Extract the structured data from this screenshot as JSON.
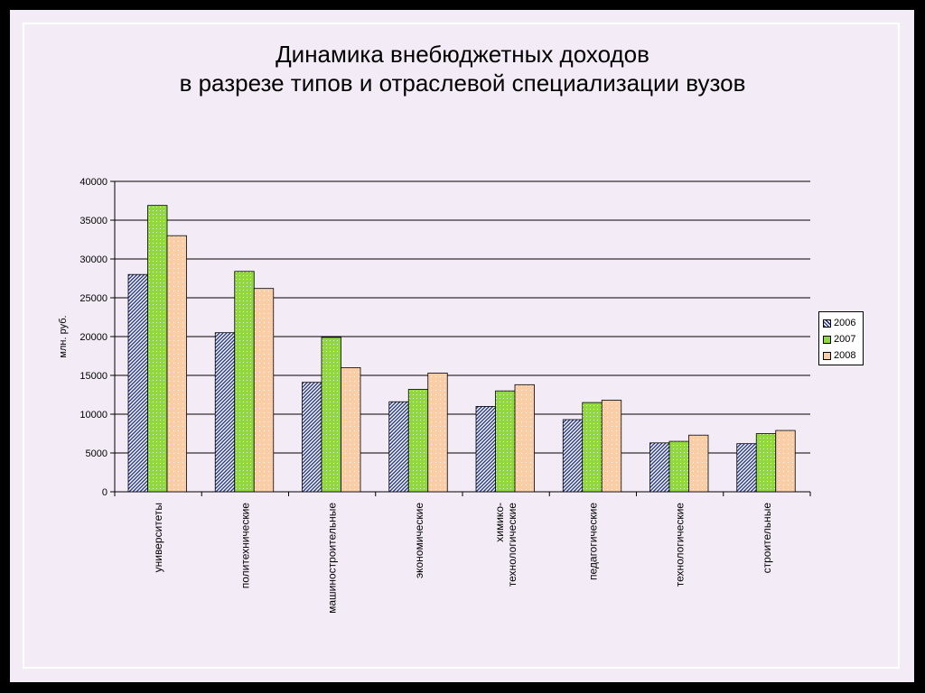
{
  "title": {
    "line1": "Динамика внебюджетных доходов",
    "line2": "в разрезе типов и отраслевой специализации вузов"
  },
  "chart_data": {
    "type": "bar",
    "ylabel": "млн. руб.",
    "ylim": [
      0,
      40000
    ],
    "yticks": [
      0,
      5000,
      10000,
      15000,
      20000,
      25000,
      30000,
      35000,
      40000
    ],
    "grid": true,
    "legend_position": "right",
    "categories": [
      [
        "университеты"
      ],
      [
        "политехнические"
      ],
      [
        "машиностроительные"
      ],
      [
        "экономические"
      ],
      [
        "химико-",
        "технологические"
      ],
      [
        "педагогические"
      ],
      [
        "технологические"
      ],
      [
        "строительные"
      ]
    ],
    "series": [
      {
        "name": "2006",
        "color": "#2d3b8f",
        "values": [
          28000,
          20500,
          14100,
          11600,
          11000,
          9300,
          6300,
          6200
        ]
      },
      {
        "name": "2007",
        "color": "#8fd93f",
        "values": [
          36900,
          28400,
          19900,
          13200,
          13000,
          11500,
          6500,
          7500
        ]
      },
      {
        "name": "2008",
        "color": "#f9cda5",
        "values": [
          33000,
          26200,
          16000,
          15300,
          13800,
          11800,
          7300,
          7900
        ]
      }
    ]
  }
}
